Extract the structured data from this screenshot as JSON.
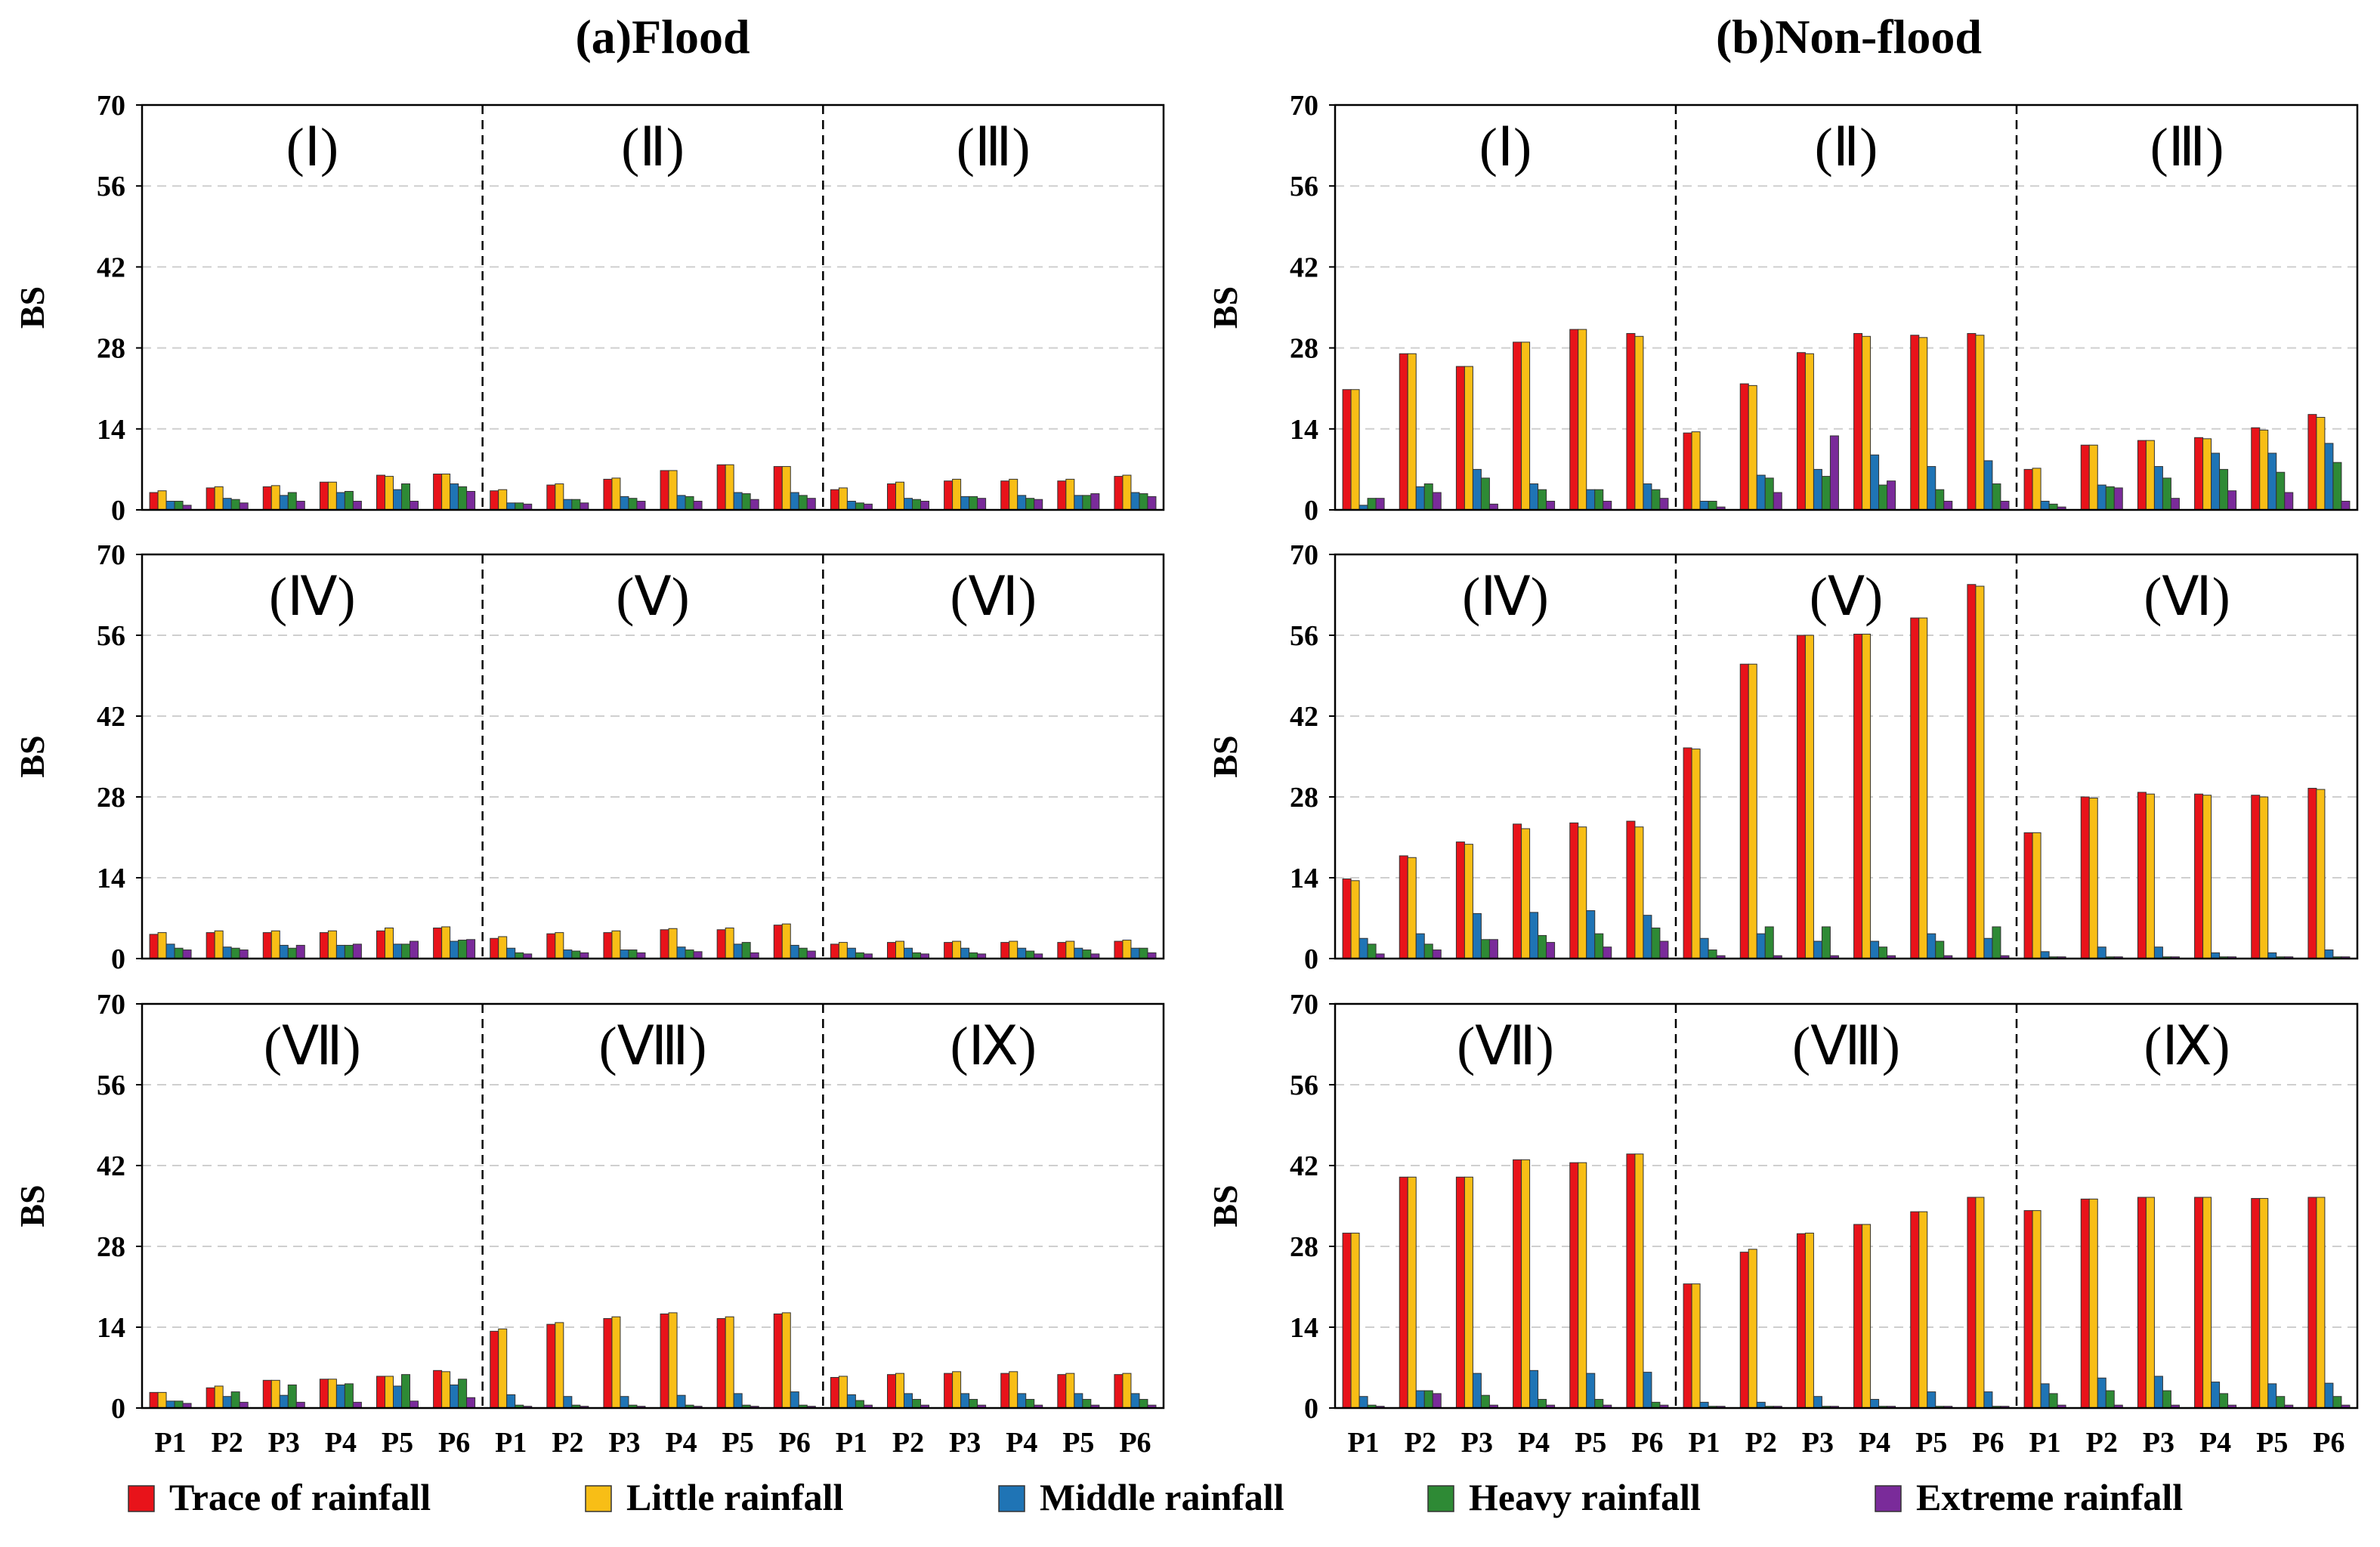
{
  "figure": {
    "titles": [
      "(a)Flood",
      "(b)Non-flood"
    ],
    "ylabel": "BS",
    "yticks": [
      "0",
      "14",
      "28",
      "42",
      "56",
      "70"
    ],
    "ymax": 70,
    "periods": [
      "P1",
      "P2",
      "P3",
      "P4",
      "P5",
      "P6"
    ],
    "region_labels": [
      "(Ⅰ)",
      "(Ⅱ)",
      "(Ⅲ)",
      "(Ⅳ)",
      "(Ⅴ)",
      "(Ⅵ)",
      "(Ⅶ)",
      "(Ⅷ)",
      "(Ⅸ)"
    ]
  },
  "legend": [
    {
      "label": "Trace of rainfall",
      "color": "#e8131a"
    },
    {
      "label": "Little rainfall",
      "color": "#f8be16"
    },
    {
      "label": "Middle rainfall",
      "color": "#1f74b5"
    },
    {
      "label": "Heavy rainfall",
      "color": "#2e8a35"
    },
    {
      "label": "Extreme rainfall",
      "color": "#7a2b9a"
    }
  ],
  "chart_data": [
    {
      "type": "bar",
      "title": "(a)Flood",
      "ylabel": "BS",
      "ylim": [
        0,
        70
      ],
      "categories": [
        "P1",
        "P2",
        "P3",
        "P4",
        "P5",
        "P6"
      ],
      "series_names": [
        "Trace of rainfall",
        "Little rainfall",
        "Middle rainfall",
        "Heavy rainfall",
        "Extreme rainfall"
      ],
      "rows": [
        [
          {
            "region": "(Ⅰ)",
            "values": [
              [
                3,
                3.3,
                1.5,
                1.5,
                0.8
              ],
              [
                3.8,
                4,
                2,
                1.8,
                1.2
              ],
              [
                4,
                4.2,
                2.5,
                3,
                1.5
              ],
              [
                4.8,
                4.8,
                3,
                3.2,
                1.5
              ],
              [
                6,
                5.8,
                3.5,
                4.5,
                1.5
              ],
              [
                6.2,
                6.2,
                4.5,
                4,
                3.2
              ]
            ]
          },
          {
            "region": "(Ⅱ)",
            "values": [
              [
                3.3,
                3.5,
                1.2,
                1.2,
                1
              ],
              [
                4.3,
                4.5,
                1.8,
                1.8,
                1.2
              ],
              [
                5.3,
                5.5,
                2.3,
                2,
                1.5
              ],
              [
                6.8,
                6.8,
                2.5,
                2.3,
                1.5
              ],
              [
                7.8,
                7.8,
                3,
                2.8,
                1.8
              ],
              [
                7.5,
                7.5,
                3,
                2.5,
                2
              ]
            ]
          },
          {
            "region": "(Ⅲ)",
            "values": [
              [
                3.5,
                3.8,
                1.5,
                1.2,
                1
              ],
              [
                4.5,
                4.8,
                2,
                1.8,
                1.5
              ],
              [
                5,
                5.3,
                2.3,
                2.3,
                2
              ],
              [
                5,
                5.3,
                2.5,
                2,
                1.8
              ],
              [
                5,
                5.3,
                2.5,
                2.5,
                2.8
              ],
              [
                5.8,
                6,
                3,
                2.8,
                2.3
              ]
            ]
          }
        ],
        [
          {
            "region": "(Ⅳ)",
            "values": [
              [
                4.2,
                4.5,
                2.5,
                1.8,
                1.5
              ],
              [
                4.5,
                4.8,
                2,
                1.8,
                1.5
              ],
              [
                4.5,
                4.8,
                2.3,
                1.8,
                2.3
              ],
              [
                4.5,
                4.8,
                2.3,
                2.3,
                2.5
              ],
              [
                4.8,
                5.3,
                2.5,
                2.5,
                3
              ],
              [
                5.3,
                5.5,
                3,
                3.2,
                3.3
              ]
            ]
          },
          {
            "region": "(Ⅴ)",
            "values": [
              [
                3.5,
                3.8,
                1.8,
                1,
                0.8
              ],
              [
                4.3,
                4.5,
                1.5,
                1.3,
                1
              ],
              [
                4.5,
                4.8,
                1.5,
                1.5,
                1
              ],
              [
                5,
                5.2,
                2,
                1.5,
                1.2
              ],
              [
                5,
                5.3,
                2.5,
                2.8,
                1
              ],
              [
                5.8,
                6,
                2.3,
                1.8,
                1.3
              ]
            ]
          },
          {
            "region": "(Ⅵ)",
            "values": [
              [
                2.5,
                2.8,
                1.8,
                1,
                0.8
              ],
              [
                2.8,
                3,
                1.8,
                1,
                0.8
              ],
              [
                2.8,
                3,
                1.8,
                1,
                0.8
              ],
              [
                2.8,
                3,
                1.8,
                1.3,
                0.8
              ],
              [
                2.8,
                3,
                1.8,
                1.5,
                0.8
              ],
              [
                3,
                3.2,
                1.8,
                1.8,
                1
              ]
            ]
          }
        ],
        [
          {
            "region": "(Ⅶ)",
            "values": [
              [
                2.7,
                2.7,
                1.2,
                1.2,
                0.8
              ],
              [
                3.5,
                3.8,
                2,
                2.8,
                1
              ],
              [
                4.8,
                4.8,
                2.2,
                4,
                1
              ],
              [
                5,
                5,
                4,
                4.2,
                1
              ],
              [
                5.5,
                5.5,
                3.8,
                5.8,
                1.2
              ],
              [
                6.5,
                6.3,
                4,
                5,
                1.8
              ]
            ]
          },
          {
            "region": "(Ⅷ)",
            "values": [
              [
                13.3,
                13.7,
                2.3,
                0.5,
                0.3
              ],
              [
                14.5,
                14.8,
                2,
                0.5,
                0.3
              ],
              [
                15.5,
                15.8,
                2,
                0.5,
                0.3
              ],
              [
                16.3,
                16.5,
                2.2,
                0.5,
                0.3
              ],
              [
                15.5,
                15.8,
                2.5,
                0.5,
                0.3
              ],
              [
                16.3,
                16.5,
                2.8,
                0.5,
                0.3
              ]
            ]
          },
          {
            "region": "(Ⅸ)",
            "values": [
              [
                5.3,
                5.5,
                2.3,
                1.3,
                0.5
              ],
              [
                5.8,
                6,
                2.5,
                1.5,
                0.5
              ],
              [
                6,
                6.3,
                2.5,
                1.5,
                0.5
              ],
              [
                6,
                6.3,
                2.5,
                1.5,
                0.5
              ],
              [
                5.8,
                6,
                2.5,
                1.5,
                0.5
              ],
              [
                5.8,
                6,
                2.5,
                1.5,
                0.5
              ]
            ]
          }
        ]
      ]
    },
    {
      "type": "bar",
      "title": "(b)Non-flood",
      "ylabel": "BS",
      "ylim": [
        0,
        70
      ],
      "categories": [
        "P1",
        "P2",
        "P3",
        "P4",
        "P5",
        "P6"
      ],
      "series_names": [
        "Trace of rainfall",
        "Little rainfall",
        "Middle rainfall",
        "Heavy rainfall",
        "Extreme rainfall"
      ],
      "rows": [
        [
          {
            "region": "(Ⅰ)",
            "values": [
              [
                20.8,
                20.8,
                0.8,
                2,
                2
              ],
              [
                27,
                27,
                4,
                4.5,
                3
              ],
              [
                24.8,
                24.8,
                7,
                5.5,
                1
              ],
              [
                29,
                29,
                4.5,
                3.5,
                1.5
              ],
              [
                31.2,
                31.2,
                3.5,
                3.5,
                1.5
              ],
              [
                30.5,
                30,
                4.5,
                3.5,
                2
              ]
            ]
          },
          {
            "region": "(Ⅱ)",
            "values": [
              [
                13.3,
                13.5,
                1.5,
                1.5,
                0.5
              ],
              [
                21.8,
                21.5,
                6,
                5.5,
                3
              ],
              [
                27.2,
                27,
                7,
                5.8,
                12.8
              ],
              [
                30.5,
                30,
                9.5,
                4.3,
                5
              ],
              [
                30.2,
                29.8,
                7.5,
                3.5,
                1.5
              ],
              [
                30.5,
                30.2,
                8.5,
                4.5,
                1.5
              ]
            ]
          },
          {
            "region": "(Ⅲ)",
            "values": [
              [
                7,
                7.2,
                1.5,
                1,
                0.5
              ],
              [
                11.2,
                11.2,
                4.3,
                4,
                3.8
              ],
              [
                12,
                12,
                7.5,
                5.5,
                2
              ],
              [
                12.5,
                12.3,
                9.8,
                7,
                3.3
              ],
              [
                14.2,
                13.8,
                9.8,
                6.5,
                3
              ],
              [
                16.5,
                16,
                11.5,
                8.2,
                1.5
              ]
            ]
          }
        ],
        [
          {
            "region": "(Ⅳ)",
            "values": [
              [
                13.8,
                13.5,
                3.5,
                2.5,
                0.8
              ],
              [
                17.8,
                17.5,
                4.3,
                2.5,
                1.5
              ],
              [
                20.2,
                19.8,
                7.8,
                3.3,
                3.3
              ],
              [
                23.3,
                22.5,
                8,
                4,
                2.8
              ],
              [
                23.5,
                22.8,
                8.3,
                4.3,
                2
              ],
              [
                23.8,
                22.8,
                7.5,
                5.3,
                3
              ]
            ]
          },
          {
            "region": "(Ⅴ)",
            "values": [
              [
                36.5,
                36.3,
                3.5,
                1.5,
                0.5
              ],
              [
                51,
                51,
                4.3,
                5.5,
                0.5
              ],
              [
                56,
                56,
                3,
                5.5,
                0.5
              ],
              [
                56.2,
                56.2,
                3,
                2,
                0.5
              ],
              [
                59,
                59,
                4.3,
                3,
                0.5
              ],
              [
                64.8,
                64.5,
                3.5,
                5.5,
                0.5
              ]
            ]
          },
          {
            "region": "(Ⅵ)",
            "values": [
              [
                21.8,
                21.8,
                1.2,
                0.3,
                0.3
              ],
              [
                28,
                27.8,
                2,
                0.3,
                0.3
              ],
              [
                28.8,
                28.5,
                2,
                0.3,
                0.3
              ],
              [
                28.5,
                28.3,
                1,
                0.3,
                0.3
              ],
              [
                28.3,
                28,
                1,
                0.3,
                0.3
              ],
              [
                29.5,
                29.3,
                1.5,
                0.3,
                0.3
              ]
            ]
          }
        ],
        [
          {
            "region": "(Ⅶ)",
            "values": [
              [
                30.3,
                30.3,
                2,
                0.5,
                0.3
              ],
              [
                40,
                40,
                3,
                3,
                2.5
              ],
              [
                40,
                40,
                6,
                2.2,
                0.5
              ],
              [
                43,
                43,
                6.5,
                1.5,
                0.5
              ],
              [
                42.5,
                42.5,
                6,
                1.5,
                0.5
              ],
              [
                44,
                44,
                6.2,
                1,
                0.5
              ]
            ]
          },
          {
            "region": "(Ⅷ)",
            "values": [
              [
                21.5,
                21.5,
                1,
                0.3,
                0.3
              ],
              [
                27,
                27.5,
                1,
                0.3,
                0.3
              ],
              [
                30.2,
                30.3,
                2,
                0.3,
                0.3
              ],
              [
                31.8,
                31.8,
                1.5,
                0.3,
                0.3
              ],
              [
                34,
                34,
                2.8,
                0.3,
                0.3
              ],
              [
                36.5,
                36.5,
                2.8,
                0.3,
                0.3
              ]
            ]
          },
          {
            "region": "(Ⅸ)",
            "values": [
              [
                34.2,
                34.2,
                4.2,
                2.5,
                0.5
              ],
              [
                36.2,
                36.2,
                5.2,
                3,
                0.5
              ],
              [
                36.5,
                36.5,
                5.5,
                3,
                0.5
              ],
              [
                36.5,
                36.5,
                4.5,
                2.5,
                0.5
              ],
              [
                36.3,
                36.3,
                4.2,
                2,
                0.5
              ],
              [
                36.5,
                36.5,
                4.3,
                2,
                0.5
              ]
            ]
          }
        ]
      ]
    }
  ]
}
